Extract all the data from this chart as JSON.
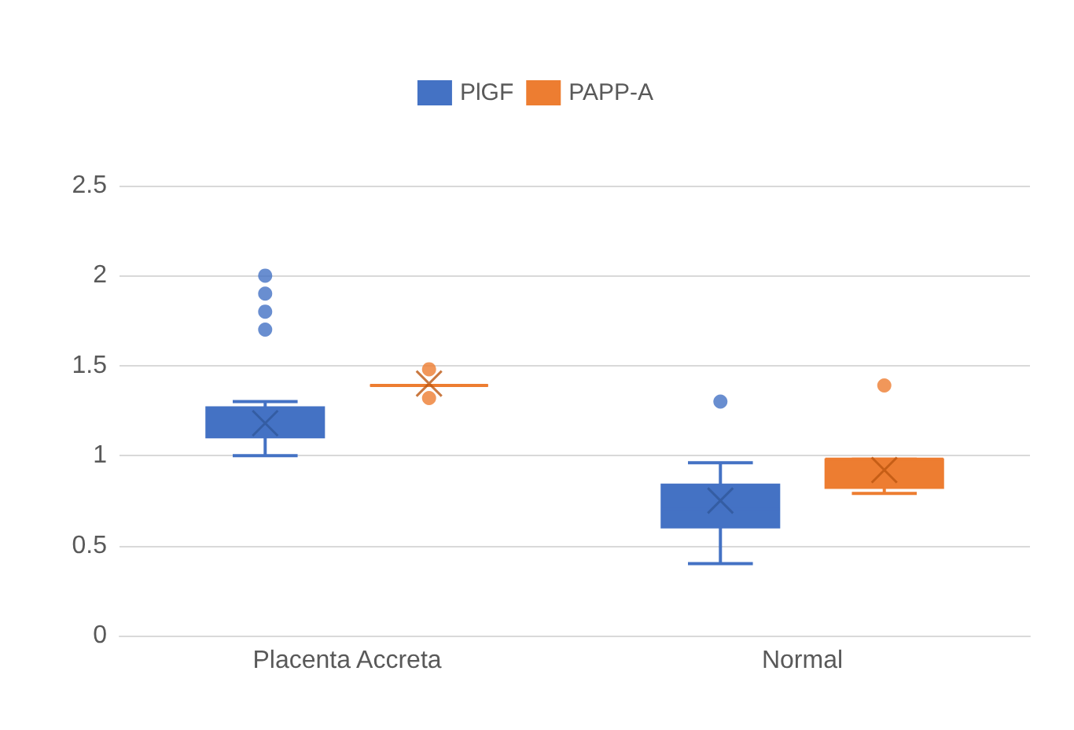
{
  "chart_data": {
    "type": "box",
    "categories": [
      "Placenta Accreta",
      "Normal"
    ],
    "series": [
      {
        "name": "PlGF",
        "color": "#4472c4",
        "boxes": [
          {
            "low": 1.0,
            "q1": 1.1,
            "median": 1.2,
            "q3": 1.27,
            "high": 1.3,
            "mean": 1.18,
            "outliers": [
              1.7,
              1.8,
              1.9,
              2.0
            ]
          },
          {
            "low": 0.4,
            "q1": 0.6,
            "median": 0.7,
            "q3": 0.84,
            "high": 0.96,
            "mean": 0.75,
            "outliers": [
              1.3
            ]
          }
        ]
      },
      {
        "name": "PAPP-A",
        "color": "#ed7d31",
        "boxes": [
          {
            "low": 1.39,
            "q1": 1.39,
            "median": 1.39,
            "q3": 1.39,
            "high": 1.39,
            "mean": 1.4,
            "outliers": [
              1.32,
              1.48
            ]
          },
          {
            "low": 0.79,
            "q1": 0.82,
            "median": 0.98,
            "q3": 0.98,
            "high": 0.98,
            "mean": 0.92,
            "outliers": [
              1.39
            ]
          }
        ]
      }
    ],
    "ylim": [
      0,
      2.5
    ],
    "yticks": [
      0,
      0.5,
      1,
      1.5,
      2,
      2.5
    ],
    "grid": "y",
    "legend": "top"
  }
}
